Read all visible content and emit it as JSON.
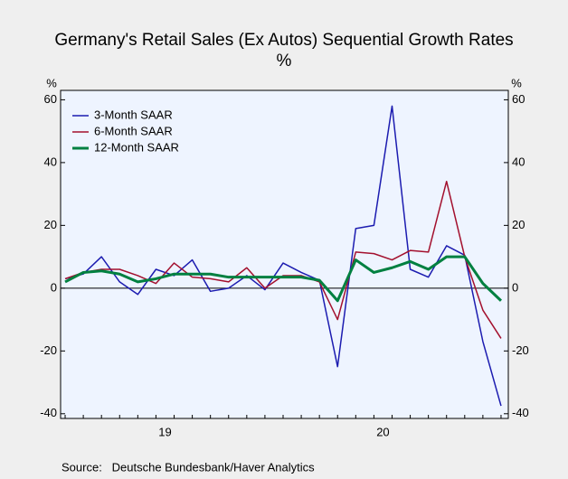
{
  "chart_data": {
    "type": "line",
    "title": "Germany's Retail Sales (Ex Autos) Sequential Growth Rates",
    "subtitle": "%",
    "y_label": "%",
    "y2_label": "%",
    "source": "Source:   Deutsche Bundesbank/Haver Analytics",
    "x": [
      0,
      1,
      2,
      3,
      4,
      5,
      6,
      7,
      8,
      9,
      10,
      11,
      12,
      13,
      14,
      15,
      16,
      17,
      18,
      19,
      20,
      21,
      22,
      23,
      24
    ],
    "xlim": [
      -0.25,
      24.4
    ],
    "xticks": [
      {
        "value": 5.5,
        "label": "19"
      },
      {
        "value": 17.5,
        "label": "20"
      }
    ],
    "ylim": [
      -41.5,
      63
    ],
    "yticks": [
      -40,
      -20,
      0,
      20,
      40,
      60
    ],
    "y2lim": [
      -41.5,
      63
    ],
    "y2ticks": [
      -40,
      -20,
      0,
      20,
      40,
      60
    ],
    "legend": "upper left",
    "series": [
      {
        "name": "3-Month SAAR",
        "color": "#1c1cb0",
        "width": 1.5,
        "values": [
          3,
          4.5,
          10,
          2,
          -2,
          6,
          4,
          9,
          -1,
          0,
          4,
          -0.5,
          8,
          5,
          2.5,
          -25,
          19,
          20,
          58,
          6,
          3.5,
          13.5,
          10.5,
          -17,
          -37.5
        ]
      },
      {
        "name": "6-Month SAAR",
        "color": "#a3102e",
        "width": 1.5,
        "values": [
          3,
          5,
          6,
          6,
          4,
          1.5,
          8,
          3.5,
          3,
          2,
          6.5,
          0,
          4,
          4,
          2,
          -10,
          11.5,
          11,
          9,
          12,
          11.5,
          34,
          10,
          -7,
          -16
        ]
      },
      {
        "name": "12-Month SAAR",
        "color": "#008040",
        "width": 3,
        "values": [
          2,
          5,
          5.5,
          4.5,
          2,
          3,
          4.5,
          4.5,
          4.5,
          3.5,
          3.5,
          3.5,
          3.5,
          3.5,
          2.5,
          -4,
          9,
          5,
          6.5,
          8.5,
          6,
          10,
          10,
          1.5,
          -4
        ]
      }
    ]
  }
}
